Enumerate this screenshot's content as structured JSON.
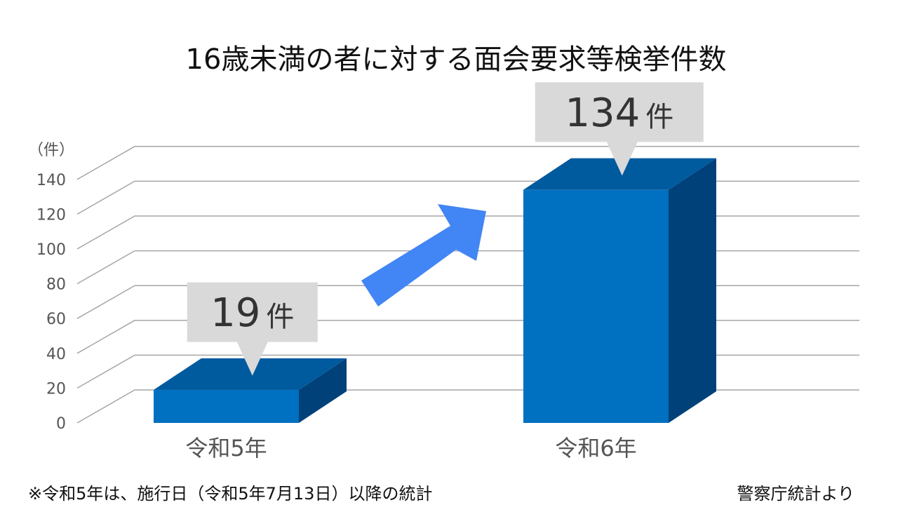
{
  "chart_data": {
    "type": "bar",
    "title": "16歳未満の者に対する面会要求等検挙件数",
    "ylabel": "（件）",
    "categories": [
      "令和5年",
      "令和6年"
    ],
    "values": [
      19,
      134
    ],
    "data_labels": [
      "19",
      "134"
    ],
    "label_unit": "件",
    "ylim": [
      0,
      140
    ],
    "yticks": [
      "0",
      "20",
      "40",
      "60",
      "80",
      "100",
      "120",
      "140"
    ],
    "grid": true,
    "bar_style": "3d",
    "colors": {
      "front": "#0070C0",
      "top": "#005A9E",
      "side": "#00417A",
      "callout": "#D9D9D9",
      "arrow": "#4285F4",
      "grid": "#A6A6A6"
    },
    "annotation": "increase-arrow"
  },
  "footnote": "※令和5年は、施行日（令和5年7月13日）以降の統計",
  "source": "警察庁統計より"
}
